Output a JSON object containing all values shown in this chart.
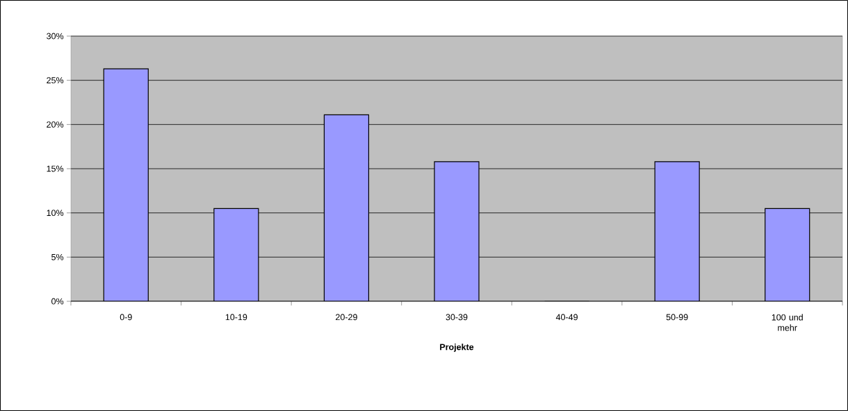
{
  "chart_data": {
    "type": "bar",
    "xlabel": "**Projekte**",
    "categories": [
      "0-9",
      "10-19",
      "20-29",
      "30-39",
      "40-49",
      "50-99",
      "100 und mehr"
    ],
    "values": [
      26.3,
      10.5,
      21.1,
      15.8,
      0,
      15.8,
      10.5
    ],
    "color": "#9999ff",
    "ylim": [
      0,
      30
    ],
    "yticks": [
      {
        "value": 0,
        "label": "0%"
      },
      {
        "value": 5,
        "label": "5%"
      },
      {
        "value": 10,
        "label": "10%"
      },
      {
        "value": 15,
        "label": "15%"
      },
      {
        "value": 20,
        "label": "20%"
      },
      {
        "value": 25,
        "label": "25%"
      },
      {
        "value": 30,
        "label": "30%"
      }
    ],
    "grid": "y"
  }
}
